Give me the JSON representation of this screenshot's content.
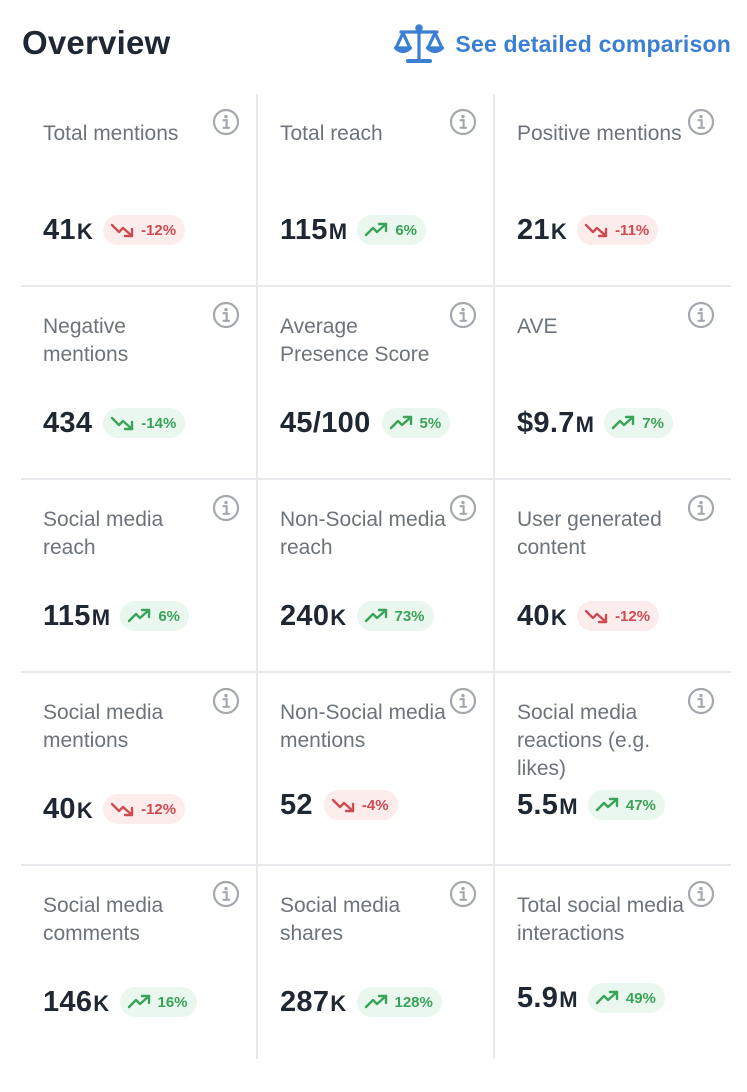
{
  "header": {
    "title": "Overview",
    "compare_label": "See detailed comparison",
    "compare_icon": "balance-scale-icon"
  },
  "colors": {
    "link": "#3b7fd4",
    "negative": "#cd4b52",
    "negative_bg": "#fdecec",
    "positive": "#3aa35a",
    "positive_bg": "#eaf7ee"
  },
  "cards": [
    {
      "label": "Total mentions",
      "value": "41",
      "suffix": "K",
      "change": "-12%",
      "trend": "down",
      "tone": "negative"
    },
    {
      "label": "Total reach",
      "value": "115",
      "suffix": "M",
      "change": "6%",
      "trend": "up",
      "tone": "positive"
    },
    {
      "label": "Positive mentions",
      "value": "21",
      "suffix": "K",
      "change": "-11%",
      "trend": "down",
      "tone": "negative"
    },
    {
      "label": "Negative mentions",
      "value": "434",
      "suffix": "",
      "change": "-14%",
      "trend": "down",
      "tone": "positive"
    },
    {
      "label": "Average Presence Score",
      "value": "45/100",
      "suffix": "",
      "change": "5%",
      "trend": "up",
      "tone": "positive"
    },
    {
      "label": "AVE",
      "value": "$9.7",
      "suffix": "M",
      "change": "7%",
      "trend": "up",
      "tone": "positive"
    },
    {
      "label": "Social media reach",
      "value": "115",
      "suffix": "M",
      "change": "6%",
      "trend": "up",
      "tone": "positive"
    },
    {
      "label": "Non-Social media reach",
      "value": "240",
      "suffix": "K",
      "change": "73%",
      "trend": "up",
      "tone": "positive"
    },
    {
      "label": "User generated content",
      "value": "40",
      "suffix": "K",
      "change": "-12%",
      "trend": "down",
      "tone": "negative"
    },
    {
      "label": "Social media mentions",
      "value": "40",
      "suffix": "K",
      "change": "-12%",
      "trend": "down",
      "tone": "negative"
    },
    {
      "label": "Non-Social media mentions",
      "value": "52",
      "suffix": "",
      "change": "-4%",
      "trend": "down",
      "tone": "negative"
    },
    {
      "label": "Social media reactions (e.g. likes)",
      "value": "5.5",
      "suffix": "M",
      "change": "47%",
      "trend": "up",
      "tone": "positive"
    },
    {
      "label": "Social media comments",
      "value": "146",
      "suffix": "K",
      "change": "16%",
      "trend": "up",
      "tone": "positive"
    },
    {
      "label": "Social media shares",
      "value": "287",
      "suffix": "K",
      "change": "128%",
      "trend": "up",
      "tone": "positive"
    },
    {
      "label": "Total social media interactions",
      "value": "5.9",
      "suffix": "M",
      "change": "49%",
      "trend": "up",
      "tone": "positive"
    }
  ]
}
